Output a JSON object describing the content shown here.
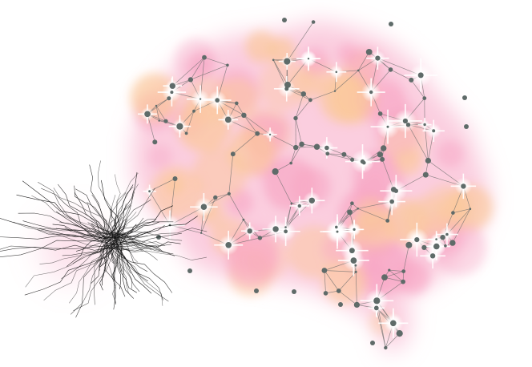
{
  "scene": {
    "subject": "brain-network-illustration",
    "colors": {
      "background": "#ffffff",
      "glow_pink": "#f7a6c4",
      "glow_peach": "#fbc89a",
      "sparkle": "#ffffff",
      "line": "#6f6f6f",
      "node": "#5f6b69",
      "tangle": "#111111"
    }
  }
}
